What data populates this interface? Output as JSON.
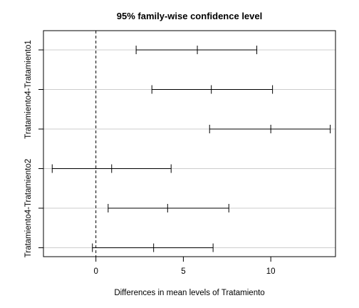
{
  "chart_data": {
    "type": "interval",
    "title": "95% family-wise confidence level",
    "xlabel": "Differences in mean levels of Tratamiento",
    "ylabel": "",
    "xlim": [
      -3,
      13.7
    ],
    "xticks": [
      0,
      5,
      10
    ],
    "reference_line_x": 0,
    "grid": "horizontal",
    "intervals": [
      {
        "label": "",
        "lwr": 2.3,
        "diff": 5.8,
        "upr": 9.2
      },
      {
        "label": "Tratamiento4-Tratamiento1",
        "lwr": 3.2,
        "diff": 6.6,
        "upr": 10.1
      },
      {
        "label": "",
        "lwr": 6.5,
        "diff": 10.0,
        "upr": 13.4
      },
      {
        "label": "",
        "lwr": -2.5,
        "diff": 0.9,
        "upr": 4.3
      },
      {
        "label": "Tratamiento4-Tratamiento2",
        "lwr": 0.7,
        "diff": 4.1,
        "upr": 7.6
      },
      {
        "label": "",
        "lwr": -0.2,
        "diff": 3.3,
        "upr": 6.7
      }
    ]
  }
}
